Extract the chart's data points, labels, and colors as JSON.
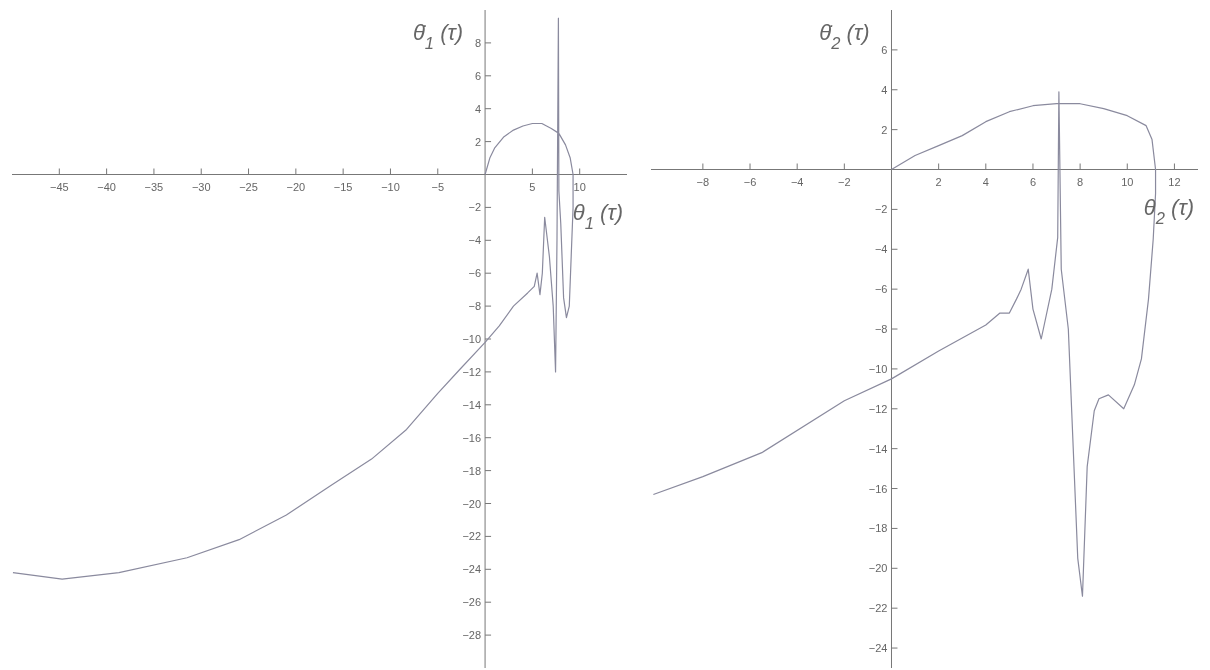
{
  "chart_data": [
    {
      "type": "line",
      "xlabel": "θ$_{1}$(τ)",
      "ylabel": "θ̇$_{1}$(τ)",
      "xlim": [
        -50,
        15
      ],
      "ylim": [
        -30,
        10
      ],
      "xticks": [
        -45,
        -40,
        -35,
        -30,
        -25,
        -20,
        -15,
        -10,
        -5,
        5,
        10
      ],
      "yticks": [
        -28,
        -26,
        -24,
        -22,
        -20,
        -18,
        -16,
        -14,
        -12,
        -10,
        -8,
        -6,
        -4,
        -2,
        2,
        4,
        6,
        8
      ],
      "series": [
        {
          "color": "#8a8a9e",
          "x": [
            0,
            0.5,
            1,
            2,
            3,
            4,
            5,
            6,
            7,
            7.8,
            8.5,
            9,
            9.3,
            9.3,
            9.1,
            8.9,
            8.6,
            8.3,
            8,
            7.8,
            7.75,
            7.6,
            7.45,
            7.2,
            6.8,
            6.3,
            6.05,
            5.8,
            5.5,
            5.2,
            4.5,
            3,
            1.5,
            0,
            -2.75,
            -5,
            -8.3,
            -12,
            -16.3,
            -21,
            -26,
            -31.5,
            -38.7,
            -44.7,
            -49.9
          ],
          "values": [
            0,
            1,
            1.6,
            2.3,
            2.7,
            2.95,
            3.1,
            3.1,
            2.8,
            2.5,
            1.8,
            1,
            0,
            -2,
            -5,
            -8,
            -8.7,
            -7.5,
            -3,
            -1,
            9.5,
            -4,
            -12,
            -8,
            -5,
            -2.6,
            -6,
            -7.3,
            -6,
            -6.8,
            -7.2,
            -8,
            -9.2,
            -10.2,
            -11.9,
            -13.3,
            -15.5,
            -17.3,
            -18.9,
            -20.7,
            -22.2,
            -23.3,
            -24.2,
            -24.6,
            -24.2
          ]
        }
      ]
    },
    {
      "type": "line",
      "xlabel": "θ$_{2}$(τ)",
      "ylabel": "θ̇$_{2}$(τ)",
      "xlim": [
        -10.2,
        13
      ],
      "ylim": [
        -25,
        8
      ],
      "xticks": [
        -8,
        -6,
        -4,
        -2,
        2,
        4,
        6,
        8,
        10,
        12
      ],
      "yticks": [
        -24,
        -22,
        -20,
        -18,
        -16,
        -14,
        -12,
        -10,
        -8,
        -6,
        -4,
        -2,
        2,
        4,
        6
      ],
      "series": [
        {
          "color": "#8a8a9e",
          "x": [
            0,
            1,
            2,
            3,
            4,
            5,
            6,
            7,
            8,
            9,
            10,
            10.8,
            11.05,
            11.2,
            11.2,
            11.1,
            10.9,
            10.6,
            10.3,
            9.85,
            9.2,
            8.8,
            8.6,
            8.3,
            8.1,
            7.9,
            7.5,
            7.2,
            7.1,
            7.05,
            6.8,
            6.35,
            6,
            5.8,
            5.5,
            5.3,
            5,
            4.6,
            4,
            2,
            0,
            -2,
            -5.5,
            -8,
            -10.1
          ],
          "values": [
            0,
            0.7,
            1.2,
            1.7,
            2.4,
            2.9,
            3.2,
            3.3,
            3.3,
            3.05,
            2.7,
            2.2,
            1.5,
            0,
            -1.2,
            -3.5,
            -6.5,
            -9.5,
            -10.8,
            -12,
            -11.3,
            -11.5,
            -12.1,
            -14.9,
            -21.4,
            -19.5,
            -8,
            -5,
            3.9,
            -3.4,
            -6,
            -8.5,
            -7,
            -5,
            -6,
            -6.5,
            -7.2,
            -7.2,
            -7.8,
            -9.1,
            -10.5,
            -11.6,
            -14.2,
            -15.4,
            -16.3
          ]
        }
      ]
    }
  ]
}
